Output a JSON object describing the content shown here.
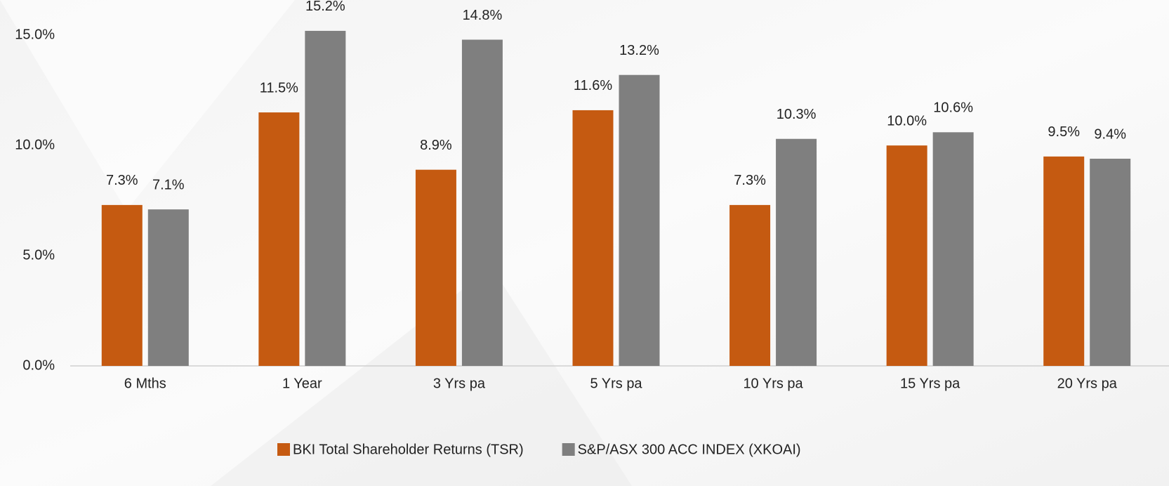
{
  "chart_data": {
    "type": "bar",
    "categories": [
      "6 Mths",
      "1 Year",
      "3 Yrs pa",
      "5 Yrs pa",
      "10 Yrs pa",
      "15 Yrs pa",
      "20 Yrs pa"
    ],
    "series": [
      {
        "name": "BKI Total Shareholder Returns (TSR)",
        "color": "#c55a11",
        "values": [
          7.3,
          11.5,
          8.9,
          11.6,
          7.3,
          10.0,
          9.5
        ],
        "value_labels": [
          "7.3%",
          "11.5%",
          "8.9%",
          "11.6%",
          "7.3%",
          "10.0%",
          "9.5%"
        ]
      },
      {
        "name": "S&P/ASX 300 ACC INDEX (XKOAI)",
        "color": "#7f7f7f",
        "values": [
          7.1,
          15.2,
          14.8,
          13.2,
          10.3,
          10.6,
          9.4
        ],
        "value_labels": [
          "7.1%",
          "15.2%",
          "14.8%",
          "13.2%",
          "10.3%",
          "10.6%",
          "9.4%"
        ]
      }
    ],
    "ylim": [
      0,
      16.6
    ],
    "yticks": [
      {
        "value": 0,
        "label": "0.0%"
      },
      {
        "value": 5,
        "label": "5.0%"
      },
      {
        "value": 10,
        "label": "10.0%"
      },
      {
        "value": 15,
        "label": "15.0%"
      }
    ],
    "grid": false,
    "legend": "bottom"
  }
}
